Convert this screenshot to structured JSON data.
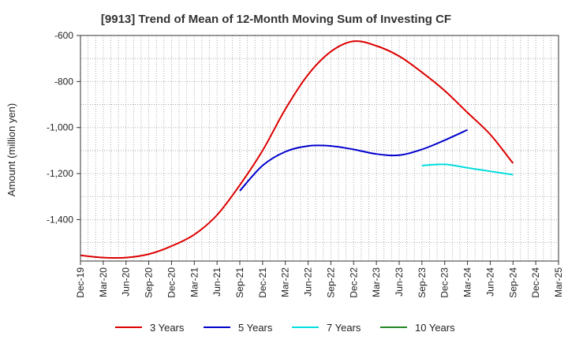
{
  "chart_data": {
    "type": "line",
    "title": "[9913]  Trend of Mean of 12-Month Moving Sum of Investing CF",
    "xlabel": "",
    "ylabel": "Amount (million yen)",
    "ylim": [
      -1580,
      -600
    ],
    "yticks": [
      -600,
      -800,
      -1000,
      -1200,
      -1400
    ],
    "ytick_labels": [
      "-600",
      "-800",
      "-1,000",
      "-1,200",
      "-1,400"
    ],
    "x_tick_labels": [
      "Dec-19",
      "Mar-20",
      "Jun-20",
      "Sep-20",
      "Dec-20",
      "Mar-21",
      "Jun-21",
      "Sep-21",
      "Dec-21",
      "Mar-22",
      "Jun-22",
      "Sep-22",
      "Dec-22",
      "Mar-23",
      "Jun-23",
      "Sep-23",
      "Dec-23",
      "Mar-24",
      "Jun-24",
      "Sep-24",
      "Dec-24",
      "Mar-25"
    ],
    "grid": true,
    "legend_position": "bottom",
    "series": [
      {
        "name": "3 Years",
        "color": "#dd0000",
        "start_index": 0,
        "values": [
          -1555,
          -1565,
          -1565,
          -1550,
          -1515,
          -1465,
          -1380,
          -1250,
          -1100,
          -920,
          -770,
          -670,
          -625,
          -645,
          -690,
          -760,
          -840,
          -935,
          -1030,
          -1155
        ]
      },
      {
        "name": "5 Years",
        "color": "#0000cc",
        "start_index": 7,
        "values": [
          -1275,
          -1165,
          -1105,
          -1080,
          -1080,
          -1095,
          -1115,
          -1120,
          -1095,
          -1055,
          -1010
        ]
      },
      {
        "name": "7 Years",
        "color": "#00dddd",
        "start_index": 15,
        "values": [
          -1165,
          -1160,
          -1175,
          -1190,
          -1205
        ]
      },
      {
        "name": "10 Years",
        "color": "#228822",
        "start_index": 0,
        "values": []
      }
    ]
  }
}
